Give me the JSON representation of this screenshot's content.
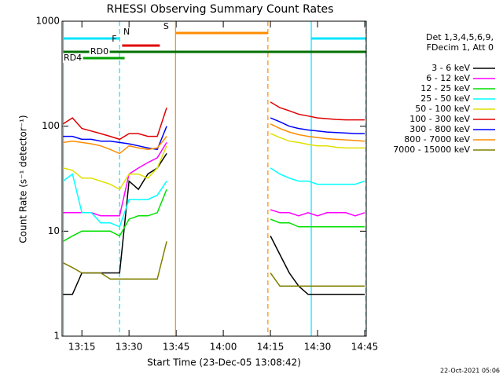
{
  "chart_data": {
    "type": "line",
    "title": "RHESSI Observing Summary Count Rates",
    "xlabel": "Start Time (23-Dec-05 13:08:42)",
    "ylabel": "Count Rate (s⁻¹ detector⁻¹)",
    "legend_header": [
      "Det 1,3,4,5,6,9,",
      "FDecim 1, Att 0"
    ],
    "footer": "22-Oct-2021 05:06",
    "log_y": true,
    "xlim": [
      788.7,
      885.5
    ],
    "ylim": [
      1,
      1000
    ],
    "xticks": [
      {
        "value": 795,
        "label": "13:15"
      },
      {
        "value": 810,
        "label": "13:30"
      },
      {
        "value": 825,
        "label": "13:45"
      },
      {
        "value": 840,
        "label": "14:00"
      },
      {
        "value": 855,
        "label": "14:15"
      },
      {
        "value": 870,
        "label": "14:30"
      },
      {
        "value": 885,
        "label": "14:45"
      }
    ],
    "yticks": [
      1,
      10,
      100,
      1000
    ],
    "x": [
      789,
      792,
      795,
      798,
      801,
      804,
      807,
      810,
      813,
      816,
      819,
      822,
      825,
      828,
      831,
      834,
      837,
      840,
      843,
      846,
      849,
      852,
      855,
      858,
      861,
      864,
      867,
      870,
      873,
      876,
      879,
      882,
      885
    ],
    "series": [
      {
        "name": "3 - 6 keV",
        "color": "#000000",
        "values": [
          2.5,
          2.5,
          4,
          4,
          4,
          4,
          4,
          30,
          25,
          35,
          40,
          55,
          null,
          null,
          null,
          null,
          null,
          null,
          null,
          null,
          null,
          null,
          9,
          6,
          4,
          3,
          2.5,
          2.5,
          2.5,
          2.5,
          2.5,
          2.5,
          2.5
        ]
      },
      {
        "name": "6 - 12 keV",
        "color": "#ff00ff",
        "values": [
          15,
          15,
          15,
          15,
          14,
          14,
          14,
          35,
          40,
          45,
          50,
          70,
          null,
          null,
          null,
          null,
          null,
          null,
          null,
          null,
          null,
          null,
          16,
          15,
          15,
          14,
          15,
          14,
          15,
          15,
          15,
          14,
          15
        ]
      },
      {
        "name": "12 - 25 keV",
        "color": "#00e000",
        "values": [
          8,
          9,
          10,
          10,
          10,
          10,
          9,
          13,
          14,
          14,
          15,
          25,
          null,
          null,
          null,
          null,
          null,
          null,
          null,
          null,
          null,
          null,
          13,
          12,
          12,
          11,
          11,
          11,
          11,
          11,
          11,
          11,
          11
        ]
      },
      {
        "name": "25 - 50 keV",
        "color": "#00ffff",
        "values": [
          30,
          35,
          15,
          15,
          12,
          12,
          11,
          20,
          20,
          20,
          22,
          30,
          null,
          null,
          null,
          null,
          null,
          null,
          null,
          null,
          null,
          null,
          40,
          35,
          32,
          30,
          30,
          28,
          28,
          28,
          28,
          28,
          30
        ]
      },
      {
        "name": "50 - 100 keV",
        "color": "#e0e000",
        "values": [
          40,
          38,
          32,
          32,
          30,
          28,
          25,
          35,
          35,
          32,
          40,
          65,
          null,
          null,
          null,
          null,
          null,
          null,
          null,
          null,
          null,
          null,
          85,
          78,
          72,
          70,
          67,
          65,
          65,
          63,
          62,
          62,
          62
        ]
      },
      {
        "name": "100 - 300 keV",
        "color": "#e00000",
        "values": [
          105,
          120,
          95,
          90,
          85,
          80,
          75,
          85,
          85,
          80,
          80,
          150,
          null,
          null,
          null,
          null,
          null,
          null,
          null,
          null,
          null,
          null,
          170,
          150,
          140,
          130,
          125,
          120,
          118,
          116,
          115,
          115,
          115
        ]
      },
      {
        "name": "300 - 800 keV",
        "color": "#0000ff",
        "values": [
          80,
          80,
          75,
          75,
          72,
          72,
          70,
          68,
          65,
          62,
          60,
          100,
          null,
          null,
          null,
          null,
          null,
          null,
          null,
          null,
          null,
          null,
          120,
          110,
          100,
          95,
          92,
          90,
          88,
          87,
          86,
          85,
          85
        ]
      },
      {
        "name": "800 - 7000 keV",
        "color": "#ff8c00",
        "values": [
          70,
          72,
          70,
          68,
          65,
          60,
          55,
          65,
          62,
          60,
          62,
          80,
          null,
          null,
          null,
          null,
          null,
          null,
          null,
          null,
          null,
          null,
          105,
          95,
          88,
          83,
          80,
          78,
          76,
          75,
          74,
          73,
          72
        ]
      },
      {
        "name": "7000 - 15000 keV",
        "color": "#808000",
        "values": [
          5,
          4.5,
          4,
          4,
          4,
          3.5,
          3.5,
          3.5,
          3.5,
          3.5,
          3.5,
          8,
          null,
          null,
          null,
          null,
          null,
          null,
          null,
          null,
          null,
          null,
          4,
          3,
          3,
          3,
          3,
          3,
          3,
          3,
          3,
          3,
          3
        ]
      }
    ],
    "intervals": [
      {
        "name": "N",
        "color": "#00e5ff",
        "spans": [
          [
            789.1,
            807
          ],
          [
            868,
            885.4
          ]
        ]
      },
      {
        "name": "S",
        "color": "#ff8c00",
        "spans": [
          [
            824.8,
            854.2
          ]
        ]
      },
      {
        "name": "F",
        "color": "#e00000",
        "spans": [
          [
            807.8,
            819.8
          ]
        ]
      },
      {
        "name": "RD0",
        "color": "#007000",
        "spans": [
          [
            789.1,
            885.4
          ]
        ]
      },
      {
        "name": "RD4",
        "color": "#00a000",
        "spans": [
          [
            789.1,
            808.6
          ]
        ]
      }
    ]
  }
}
